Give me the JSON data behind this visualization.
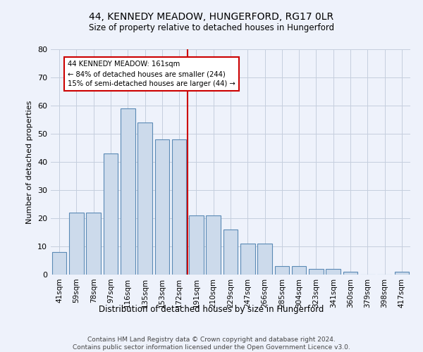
{
  "title": "44, KENNEDY MEADOW, HUNGERFORD, RG17 0LR",
  "subtitle": "Size of property relative to detached houses in Hungerford",
  "xlabel_bottom": "Distribution of detached houses by size in Hungerford",
  "ylabel": "Number of detached properties",
  "categories": [
    "41sqm",
    "59sqm",
    "78sqm",
    "97sqm",
    "116sqm",
    "135sqm",
    "153sqm",
    "172sqm",
    "191sqm",
    "210sqm",
    "229sqm",
    "247sqm",
    "266sqm",
    "285sqm",
    "304sqm",
    "323sqm",
    "341sqm",
    "360sqm",
    "379sqm",
    "398sqm",
    "417sqm"
  ],
  "values": [
    8,
    22,
    22,
    43,
    59,
    54,
    48,
    48,
    21,
    21,
    16,
    11,
    11,
    3,
    3,
    2,
    2,
    1,
    0,
    0,
    1
  ],
  "bar_color": "#ccdaeb",
  "bar_edge_color": "#5b8ab5",
  "vline_x": 7.5,
  "annotation_text": "44 KENNEDY MEADOW: 161sqm\n← 84% of detached houses are smaller (244)\n15% of semi-detached houses are larger (44) →",
  "annotation_box_color": "#ffffff",
  "annotation_box_edge": "#cc0000",
  "vline_color": "#cc0000",
  "ylim": [
    0,
    80
  ],
  "yticks": [
    0,
    10,
    20,
    30,
    40,
    50,
    60,
    70,
    80
  ],
  "footer": "Contains HM Land Registry data © Crown copyright and database right 2024.\nContains public sector information licensed under the Open Government Licence v3.0.",
  "bg_color": "#eef2fb",
  "grid_color": "#c5cede"
}
